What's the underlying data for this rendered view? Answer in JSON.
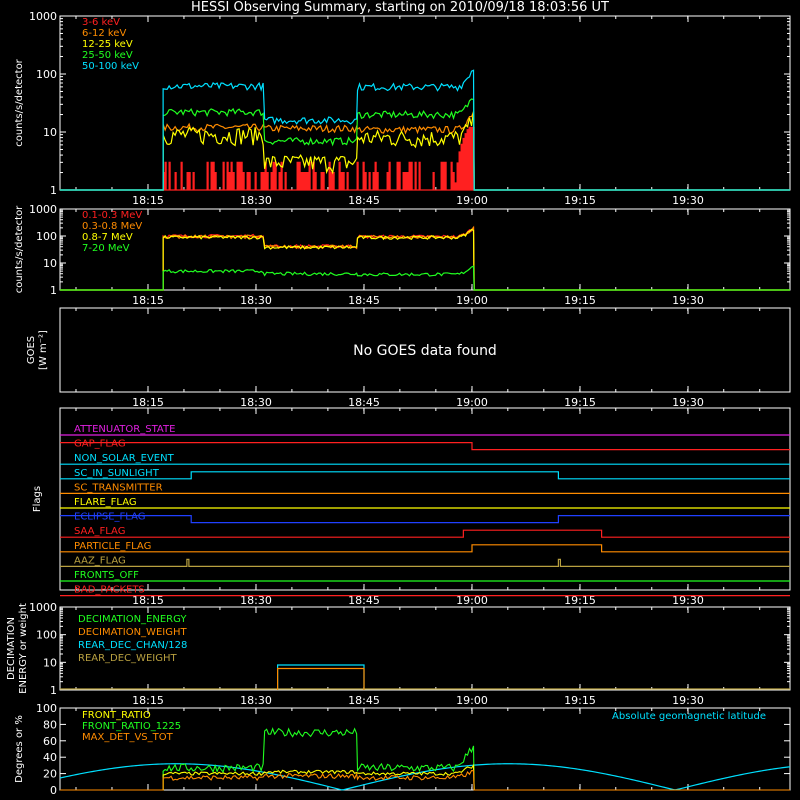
{
  "title": "HESSI Observing Summary, starting on 2010/09/18 18:03:56 UT",
  "time_ticks": [
    "18:15",
    "18:30",
    "18:45",
    "19:00",
    "19:15",
    "19:30"
  ],
  "chart_data": [
    {
      "id": "p1",
      "type": "line",
      "ylabel": "counts/s/detector",
      "ylog": true,
      "ylim": [
        1,
        1000
      ],
      "yticks": [
        "1",
        "10",
        "100",
        "1000"
      ],
      "series": [
        {
          "name": "3-6 keV",
          "color": "#ff2020",
          "shape": "low",
          "level": 1.5
        },
        {
          "name": "6-12 keV",
          "color": "#ff8c00",
          "shape": "body",
          "levels": [
            12,
            11.5,
            11
          ]
        },
        {
          "name": "12-25 keV",
          "color": "#ffff00",
          "shape": "body",
          "levels": [
            9,
            3,
            8
          ]
        },
        {
          "name": "25-50 keV",
          "color": "#20ff20",
          "shape": "body",
          "levels": [
            22,
            7,
            20
          ]
        },
        {
          "name": "50-100 keV",
          "color": "#00e0ff",
          "shape": "body",
          "levels": [
            62,
            16,
            60
          ]
        }
      ]
    },
    {
      "id": "p2",
      "type": "line",
      "ylabel": "counts/s/detector",
      "ylog": true,
      "ylim": [
        1,
        1000
      ],
      "yticks": [
        "1",
        "10",
        "100",
        "1000"
      ],
      "series": [
        {
          "name": "0.1-0.3 MeV",
          "color": "#ff2020",
          "shape": "body",
          "levels": [
            100,
            42,
            95
          ]
        },
        {
          "name": "0.3-0.8 MeV",
          "color": "#ff8c00",
          "shape": "body",
          "levels": [
            95,
            40,
            92
          ]
        },
        {
          "name": "0.8-7 MeV",
          "color": "#ffff00",
          "shape": "body",
          "levels": [
            90,
            38,
            88
          ]
        },
        {
          "name": "7-20 MeV",
          "color": "#20ff20",
          "shape": "body",
          "levels": [
            5,
            4,
            3.8
          ]
        }
      ]
    },
    {
      "id": "p3",
      "type": "line",
      "ylabel": "GOES",
      "ylabel_units": "[W m⁻²]",
      "message": "No GOES data found"
    },
    {
      "id": "p4",
      "type": "flags",
      "ylabel": "Flags",
      "flags": [
        {
          "name": "ATTENUATOR_STATE",
          "color": "#e020e0",
          "steps": []
        },
        {
          "name": "GAP_FLAG",
          "color": "#ff2020",
          "steps": [
            [
              0,
              1
            ],
            [
              19.0,
              0
            ]
          ]
        },
        {
          "name": "NON_SOLAR_EVENT",
          "color": "#00e0ff",
          "steps": []
        },
        {
          "name": "SC_IN_SUNLIGHT",
          "color": "#00e0ff",
          "steps": [
            [
              0,
              0
            ],
            [
              18.35,
              1
            ],
            [
              19.2,
              0
            ]
          ]
        },
        {
          "name": "SC_TRANSMITTER",
          "color": "#ff8c00",
          "steps": []
        },
        {
          "name": "FLARE_FLAG",
          "color": "#ffff00",
          "steps": []
        },
        {
          "name": "ECLIPSE_FLAG",
          "color": "#2040ff",
          "steps": [
            [
              0,
              1
            ],
            [
              18.35,
              0
            ],
            [
              19.2,
              1
            ]
          ]
        },
        {
          "name": "SAA_FLAG",
          "color": "#ff2020",
          "steps": [
            [
              0,
              0
            ],
            [
              18.98,
              1
            ],
            [
              19.3,
              0
            ]
          ]
        },
        {
          "name": "PARTICLE_FLAG",
          "color": "#ff8c00",
          "steps": [
            [
              0,
              0
            ],
            [
              19.0,
              1
            ],
            [
              19.3,
              0
            ]
          ]
        },
        {
          "name": "AAZ_FLAG",
          "color": "#b8a040",
          "steps": [],
          "spikes": [
            18.34,
            19.2
          ]
        },
        {
          "name": "FRONTS_OFF",
          "color": "#20ff20",
          "steps": []
        },
        {
          "name": "BAD_PACKETS",
          "color": "#ff2020",
          "steps": []
        }
      ]
    },
    {
      "id": "p5",
      "type": "line",
      "ylabel": "DECIMATION",
      "ylabel2": "ENERGY or weight",
      "ylog": true,
      "ylim": [
        1,
        1000
      ],
      "yticks": [
        "1",
        "10",
        "100",
        "1000"
      ],
      "series": [
        {
          "name": "DECIMATION_ENERGY",
          "color": "#20ff20"
        },
        {
          "name": "DECIMATION_WEIGHT",
          "color": "#ff8c00"
        },
        {
          "name": "REAR_DEC_CHAN/128",
          "color": "#00e0ff"
        },
        {
          "name": "REAR_DEC_WEIGHT",
          "color": "#b8a040"
        }
      ],
      "box": {
        "x": [
          18.55,
          18.75
        ],
        "levels": [
          8,
          6
        ]
      }
    },
    {
      "id": "p6",
      "type": "line",
      "ylabel": "Degrees or %",
      "ylog": false,
      "ylim": [
        0,
        100
      ],
      "yticks": [
        "0",
        "20",
        "40",
        "60",
        "80",
        "100"
      ],
      "series": [
        {
          "name": "FRONT_RATIO",
          "color": "#ffff00"
        },
        {
          "name": "FRONT_RATIO_1225",
          "color": "#20ff20"
        },
        {
          "name": "MAX_DET_VS_TOT",
          "color": "#ff8c00"
        }
      ],
      "annotation": {
        "text": "Absolute geomagnetic latitude",
        "color": "#00e0ff"
      }
    }
  ]
}
